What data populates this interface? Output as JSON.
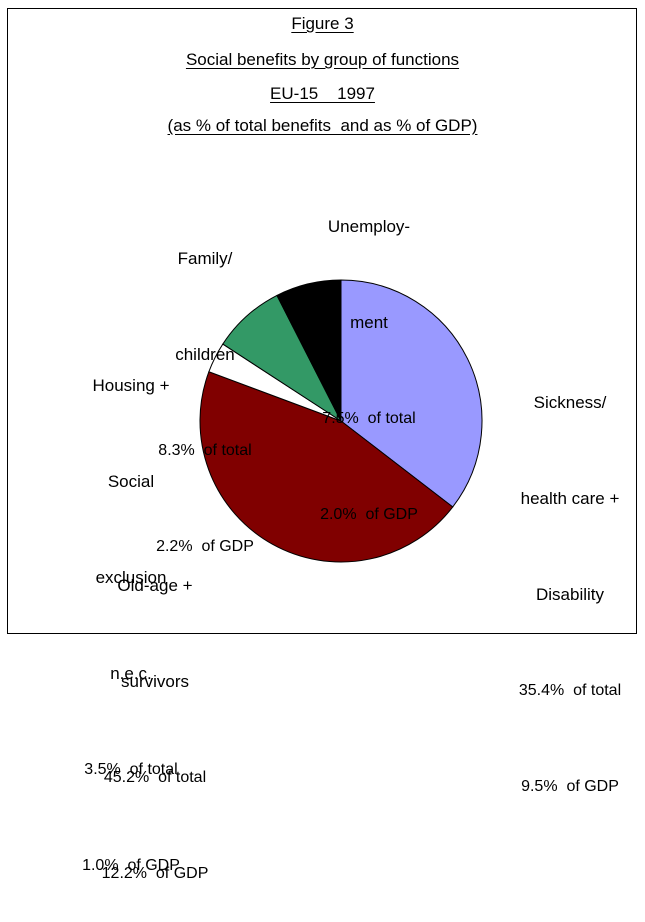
{
  "chart_data": {
    "type": "pie",
    "title_lines": [
      "Figure 3",
      "Social benefits by group of functions",
      "EU-15    1997",
      "(as % of total benefits  and as % of GDP)"
    ],
    "slices": [
      {
        "label_lines": [
          "Sickness/",
          "health care +",
          "Disability"
        ],
        "pct_total": 35.4,
        "pct_gdp": 9.5,
        "total_text": "35.4%  of total",
        "gdp_text": "9.5%  of GDP",
        "color": "#9999ff"
      },
      {
        "label_lines": [
          "Old-age +",
          "survivors"
        ],
        "pct_total": 45.2,
        "pct_gdp": 12.2,
        "total_text": "45.2%  of total",
        "gdp_text": "12.2%  of GDP",
        "color": "#800000"
      },
      {
        "label_lines": [
          "Housing +",
          "Social",
          "exclusion",
          "n.e.c."
        ],
        "pct_total": 3.5,
        "pct_gdp": 1.0,
        "total_text": "3.5%  of total",
        "gdp_text": "1.0%  of GDP",
        "color": "#ffffff"
      },
      {
        "label_lines": [
          "Family/",
          "children"
        ],
        "pct_total": 8.3,
        "pct_gdp": 2.2,
        "total_text": "8.3%  of total",
        "gdp_text": "2.2%  of GDP",
        "color": "#339966"
      },
      {
        "label_lines": [
          "Unemploy-",
          "ment"
        ],
        "pct_total": 7.5,
        "pct_gdp": 2.0,
        "total_text": "7.5%  of total",
        "gdp_text": "2.0%  of GDP",
        "color": "#000000"
      }
    ]
  }
}
